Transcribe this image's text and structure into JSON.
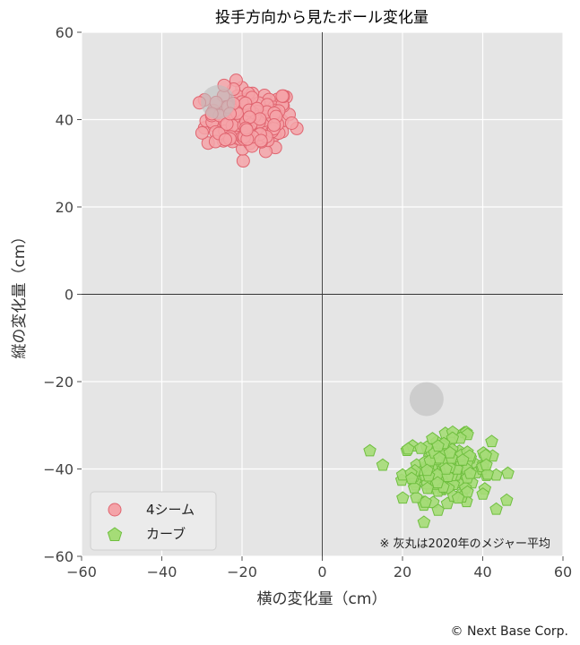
{
  "chart_data": {
    "type": "scatter",
    "title": "投手方向から見たボール変化量",
    "xlabel": "横の変化量（cm）",
    "ylabel": "縦の変化量（cm）",
    "xlim": [
      -60,
      60
    ],
    "ylim": [
      -60,
      60
    ],
    "x_ticks": [
      "−60",
      "−40",
      "−20",
      "0",
      "20",
      "40",
      "60"
    ],
    "y_ticks": [
      "60",
      "40",
      "20",
      "0",
      "−20",
      "−40",
      "−60"
    ],
    "grid": true,
    "legend_position": "lower-left",
    "series": [
      {
        "name": "4シーム",
        "marker": "circle",
        "color": "#f4a3a8",
        "edge_color": "#e06570",
        "center": [
          -18,
          40
        ],
        "spread": [
          5.5,
          3.6
        ],
        "count": 170
      },
      {
        "name": "カーブ",
        "marker": "pentagon",
        "color": "#a5dc77",
        "edge_color": "#6fbf3f",
        "center": [
          31,
          -40
        ],
        "spread": [
          5.5,
          3.6
        ],
        "count": 170
      }
    ],
    "league_average": [
      {
        "x": -26,
        "y": 44
      },
      {
        "x": 26,
        "y": -24
      }
    ],
    "note": "※ 灰丸は2020年のメジャー平均"
  },
  "footer": {
    "copyright": "© Next Base Corp."
  }
}
